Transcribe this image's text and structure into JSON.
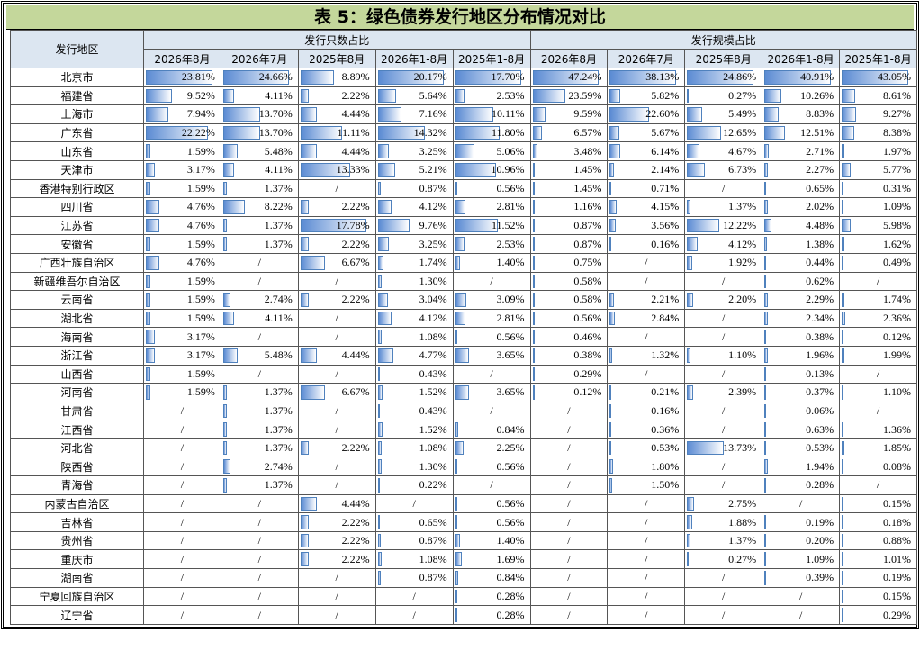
{
  "header": {
    "title": "表 5：绿色债券发行地区分布情况对比"
  },
  "table": {
    "region_header": "发行地区",
    "groups": [
      "发行只数占比",
      "发行规模占比"
    ],
    "columns": [
      "2026年8月",
      "2026年7月",
      "2025年8月",
      "2026年1-8月",
      "2025年1-8月",
      "2026年8月",
      "2026年7月",
      "2025年8月",
      "2026年1-8月",
      "2025年1-8月"
    ],
    "rows": [
      [
        "北京市",
        {
          "value": 23.81,
          "label": "23.81%"
        },
        {
          "value": 24.66,
          "label": "24.66%"
        },
        {
          "value": 8.89,
          "label": "8.89%"
        },
        {
          "value": 20.17,
          "label": "20.17%"
        },
        {
          "value": 17.7,
          "label": "17.70%"
        },
        {
          "value": 47.24,
          "label": "47.24%"
        },
        {
          "value": 38.13,
          "label": "38.13%"
        },
        {
          "value": 24.86,
          "label": "24.86%"
        },
        {
          "value": 40.91,
          "label": "40.91%"
        },
        {
          "value": 43.05,
          "label": "43.05%"
        }
      ],
      [
        "福建省",
        {
          "value": 9.52,
          "label": "9.52%"
        },
        {
          "value": 4.11,
          "label": "4.11%"
        },
        {
          "value": 2.22,
          "label": "2.22%"
        },
        {
          "value": 5.64,
          "label": "5.64%"
        },
        {
          "value": 2.53,
          "label": "2.53%"
        },
        {
          "value": 23.59,
          "label": "23.59%"
        },
        {
          "value": 5.82,
          "label": "5.82%"
        },
        {
          "value": 0.27,
          "label": "0.27%"
        },
        {
          "value": 10.26,
          "label": "10.26%"
        },
        {
          "value": 8.61,
          "label": "8.61%"
        }
      ],
      [
        "上海市",
        {
          "value": 7.94,
          "label": "7.94%"
        },
        {
          "value": 13.7,
          "label": "13.70%"
        },
        {
          "value": 4.44,
          "label": "4.44%"
        },
        {
          "value": 7.16,
          "label": "7.16%"
        },
        {
          "value": 10.11,
          "label": "10.11%"
        },
        {
          "value": 9.59,
          "label": "9.59%"
        },
        {
          "value": 22.6,
          "label": "22.60%"
        },
        {
          "value": 5.49,
          "label": "5.49%"
        },
        {
          "value": 8.83,
          "label": "8.83%"
        },
        {
          "value": 9.27,
          "label": "9.27%"
        }
      ],
      [
        "广东省",
        {
          "value": 22.22,
          "label": "22.22%"
        },
        {
          "value": 13.7,
          "label": "13.70%"
        },
        {
          "value": 11.11,
          "label": "11.11%"
        },
        {
          "value": 14.32,
          "label": "14.32%"
        },
        {
          "value": 11.8,
          "label": "11.80%"
        },
        {
          "value": 6.57,
          "label": "6.57%"
        },
        {
          "value": 5.67,
          "label": "5.67%"
        },
        {
          "value": 12.65,
          "label": "12.65%"
        },
        {
          "value": 12.51,
          "label": "12.51%"
        },
        {
          "value": 8.38,
          "label": "8.38%"
        }
      ],
      [
        "山东省",
        {
          "value": 1.59,
          "label": "1.59%"
        },
        {
          "value": 5.48,
          "label": "5.48%"
        },
        {
          "value": 4.44,
          "label": "4.44%"
        },
        {
          "value": 3.25,
          "label": "3.25%"
        },
        {
          "value": 5.06,
          "label": "5.06%"
        },
        {
          "value": 3.48,
          "label": "3.48%"
        },
        {
          "value": 6.14,
          "label": "6.14%"
        },
        {
          "value": 4.67,
          "label": "4.67%"
        },
        {
          "value": 2.71,
          "label": "2.71%"
        },
        {
          "value": 1.97,
          "label": "1.97%"
        }
      ],
      [
        "天津市",
        {
          "value": 3.17,
          "label": "3.17%"
        },
        {
          "value": 4.11,
          "label": "4.11%"
        },
        {
          "value": 13.33,
          "label": "13.33%"
        },
        {
          "value": 5.21,
          "label": "5.21%"
        },
        {
          "value": 10.96,
          "label": "10.96%"
        },
        {
          "value": 1.45,
          "label": "1.45%"
        },
        {
          "value": 2.14,
          "label": "2.14%"
        },
        {
          "value": 6.73,
          "label": "6.73%"
        },
        {
          "value": 2.27,
          "label": "2.27%"
        },
        {
          "value": 5.77,
          "label": "5.77%"
        }
      ],
      [
        "香港特别行政区",
        {
          "value": 1.59,
          "label": "1.59%"
        },
        {
          "value": 1.37,
          "label": "1.37%"
        },
        "/",
        {
          "value": 0.87,
          "label": "0.87%"
        },
        {
          "value": 0.56,
          "label": "0.56%"
        },
        {
          "value": 1.45,
          "label": "1.45%"
        },
        {
          "value": 0.71,
          "label": "0.71%"
        },
        "/",
        {
          "value": 0.65,
          "label": "0.65%"
        },
        {
          "value": 0.31,
          "label": "0.31%"
        }
      ],
      [
        "四川省",
        {
          "value": 4.76,
          "label": "4.76%"
        },
        {
          "value": 8.22,
          "label": "8.22%"
        },
        {
          "value": 2.22,
          "label": "2.22%"
        },
        {
          "value": 4.12,
          "label": "4.12%"
        },
        {
          "value": 2.81,
          "label": "2.81%"
        },
        {
          "value": 1.16,
          "label": "1.16%"
        },
        {
          "value": 4.15,
          "label": "4.15%"
        },
        {
          "value": 1.37,
          "label": "1.37%"
        },
        {
          "value": 2.02,
          "label": "2.02%"
        },
        {
          "value": 1.09,
          "label": "1.09%"
        }
      ],
      [
        "江苏省",
        {
          "value": 4.76,
          "label": "4.76%"
        },
        {
          "value": 1.37,
          "label": "1.37%"
        },
        {
          "value": 17.78,
          "label": "17.78%"
        },
        {
          "value": 9.76,
          "label": "9.76%"
        },
        {
          "value": 11.52,
          "label": "11.52%"
        },
        {
          "value": 0.87,
          "label": "0.87%"
        },
        {
          "value": 3.56,
          "label": "3.56%"
        },
        {
          "value": 12.22,
          "label": "12.22%"
        },
        {
          "value": 4.48,
          "label": "4.48%"
        },
        {
          "value": 5.98,
          "label": "5.98%"
        }
      ],
      [
        "安徽省",
        {
          "value": 1.59,
          "label": "1.59%"
        },
        {
          "value": 1.37,
          "label": "1.37%"
        },
        {
          "value": 2.22,
          "label": "2.22%"
        },
        {
          "value": 3.25,
          "label": "3.25%"
        },
        {
          "value": 2.53,
          "label": "2.53%"
        },
        {
          "value": 0.87,
          "label": "0.87%"
        },
        {
          "value": 0.16,
          "label": "0.16%"
        },
        {
          "value": 4.12,
          "label": "4.12%"
        },
        {
          "value": 1.38,
          "label": "1.38%"
        },
        {
          "value": 1.62,
          "label": "1.62%"
        }
      ],
      [
        "广西壮族自治区",
        {
          "value": 4.76,
          "label": "4.76%"
        },
        "/",
        {
          "value": 6.67,
          "label": "6.67%"
        },
        {
          "value": 1.74,
          "label": "1.74%"
        },
        {
          "value": 1.4,
          "label": "1.40%"
        },
        {
          "value": 0.75,
          "label": "0.75%"
        },
        "/",
        {
          "value": 1.92,
          "label": "1.92%"
        },
        {
          "value": 0.44,
          "label": "0.44%"
        },
        {
          "value": 0.49,
          "label": "0.49%"
        }
      ],
      [
        "新疆维吾尔自治区",
        {
          "value": 1.59,
          "label": "1.59%"
        },
        "/",
        "/",
        {
          "value": 1.3,
          "label": "1.30%"
        },
        "/",
        {
          "value": 0.58,
          "label": "0.58%"
        },
        "/",
        "/",
        {
          "value": 0.62,
          "label": "0.62%"
        },
        "/"
      ],
      [
        "云南省",
        {
          "value": 1.59,
          "label": "1.59%"
        },
        {
          "value": 2.74,
          "label": "2.74%"
        },
        {
          "value": 2.22,
          "label": "2.22%"
        },
        {
          "value": 3.04,
          "label": "3.04%"
        },
        {
          "value": 3.09,
          "label": "3.09%"
        },
        {
          "value": 0.58,
          "label": "0.58%"
        },
        {
          "value": 2.21,
          "label": "2.21%"
        },
        {
          "value": 2.2,
          "label": "2.20%"
        },
        {
          "value": 2.29,
          "label": "2.29%"
        },
        {
          "value": 1.74,
          "label": "1.74%"
        }
      ],
      [
        "湖北省",
        {
          "value": 1.59,
          "label": "1.59%"
        },
        {
          "value": 4.11,
          "label": "4.11%"
        },
        "/",
        {
          "value": 4.12,
          "label": "4.12%"
        },
        {
          "value": 2.81,
          "label": "2.81%"
        },
        {
          "value": 0.56,
          "label": "0.56%"
        },
        {
          "value": 2.84,
          "label": "2.84%"
        },
        "/",
        {
          "value": 2.34,
          "label": "2.34%"
        },
        {
          "value": 2.36,
          "label": "2.36%"
        }
      ],
      [
        "海南省",
        {
          "value": 3.17,
          "label": "3.17%"
        },
        "/",
        "/",
        {
          "value": 1.08,
          "label": "1.08%"
        },
        {
          "value": 0.56,
          "label": "0.56%"
        },
        {
          "value": 0.46,
          "label": "0.46%"
        },
        "/",
        "/",
        {
          "value": 0.38,
          "label": "0.38%"
        },
        {
          "value": 0.12,
          "label": "0.12%"
        }
      ],
      [
        "浙江省",
        {
          "value": 3.17,
          "label": "3.17%"
        },
        {
          "value": 5.48,
          "label": "5.48%"
        },
        {
          "value": 4.44,
          "label": "4.44%"
        },
        {
          "value": 4.77,
          "label": "4.77%"
        },
        {
          "value": 3.65,
          "label": "3.65%"
        },
        {
          "value": 0.38,
          "label": "0.38%"
        },
        {
          "value": 1.32,
          "label": "1.32%"
        },
        {
          "value": 1.1,
          "label": "1.10%"
        },
        {
          "value": 1.96,
          "label": "1.96%"
        },
        {
          "value": 1.99,
          "label": "1.99%"
        }
      ],
      [
        "山西省",
        {
          "value": 1.59,
          "label": "1.59%"
        },
        "/",
        "/",
        {
          "value": 0.43,
          "label": "0.43%"
        },
        "/",
        {
          "value": 0.29,
          "label": "0.29%"
        },
        "/",
        "/",
        {
          "value": 0.13,
          "label": "0.13%"
        },
        "/"
      ],
      [
        "河南省",
        {
          "value": 1.59,
          "label": "1.59%"
        },
        {
          "value": 1.37,
          "label": "1.37%"
        },
        {
          "value": 6.67,
          "label": "6.67%"
        },
        {
          "value": 1.52,
          "label": "1.52%"
        },
        {
          "value": 3.65,
          "label": "3.65%"
        },
        {
          "value": 0.12,
          "label": "0.12%"
        },
        {
          "value": 0.21,
          "label": "0.21%"
        },
        {
          "value": 2.39,
          "label": "2.39%"
        },
        {
          "value": 0.37,
          "label": "0.37%"
        },
        {
          "value": 1.1,
          "label": "1.10%"
        }
      ],
      [
        "甘肃省",
        "/",
        {
          "value": 1.37,
          "label": "1.37%"
        },
        "/",
        {
          "value": 0.43,
          "label": "0.43%"
        },
        "/",
        "/",
        {
          "value": 0.16,
          "label": "0.16%"
        },
        "/",
        {
          "value": 0.06,
          "label": "0.06%"
        },
        "/"
      ],
      [
        "江西省",
        "/",
        {
          "value": 1.37,
          "label": "1.37%"
        },
        "/",
        {
          "value": 1.52,
          "label": "1.52%"
        },
        {
          "value": 0.84,
          "label": "0.84%"
        },
        "/",
        {
          "value": 0.36,
          "label": "0.36%"
        },
        "/",
        {
          "value": 0.63,
          "label": "0.63%"
        },
        {
          "value": 1.36,
          "label": "1.36%"
        }
      ],
      [
        "河北省",
        "/",
        {
          "value": 1.37,
          "label": "1.37%"
        },
        {
          "value": 2.22,
          "label": "2.22%"
        },
        {
          "value": 1.08,
          "label": "1.08%"
        },
        {
          "value": 2.25,
          "label": "2.25%"
        },
        "/",
        {
          "value": 0.53,
          "label": "0.53%"
        },
        {
          "value": 13.73,
          "label": "13.73%"
        },
        {
          "value": 0.53,
          "label": "0.53%"
        },
        {
          "value": 1.85,
          "label": "1.85%"
        }
      ],
      [
        "陕西省",
        "/",
        {
          "value": 2.74,
          "label": "2.74%"
        },
        "/",
        {
          "value": 1.3,
          "label": "1.30%"
        },
        {
          "value": 0.56,
          "label": "0.56%"
        },
        "/",
        {
          "value": 1.8,
          "label": "1.80%"
        },
        "/",
        {
          "value": 1.94,
          "label": "1.94%"
        },
        {
          "value": 0.08,
          "label": "0.08%"
        }
      ],
      [
        "青海省",
        "/",
        {
          "value": 1.37,
          "label": "1.37%"
        },
        "/",
        {
          "value": 0.22,
          "label": "0.22%"
        },
        "/",
        "/",
        {
          "value": 1.5,
          "label": "1.50%"
        },
        "/",
        {
          "value": 0.28,
          "label": "0.28%"
        },
        "/"
      ],
      [
        "内蒙古自治区",
        "/",
        "/",
        {
          "value": 4.44,
          "label": "4.44%"
        },
        "/",
        {
          "value": 0.56,
          "label": "0.56%"
        },
        "/",
        "/",
        {
          "value": 2.75,
          "label": "2.75%"
        },
        "/",
        {
          "value": 0.15,
          "label": "0.15%"
        }
      ],
      [
        "吉林省",
        "/",
        "/",
        {
          "value": 2.22,
          "label": "2.22%"
        },
        {
          "value": 0.65,
          "label": "0.65%"
        },
        {
          "value": 0.56,
          "label": "0.56%"
        },
        "/",
        "/",
        {
          "value": 1.88,
          "label": "1.88%"
        },
        {
          "value": 0.19,
          "label": "0.19%"
        },
        {
          "value": 0.18,
          "label": "0.18%"
        }
      ],
      [
        "贵州省",
        "/",
        "/",
        {
          "value": 2.22,
          "label": "2.22%"
        },
        {
          "value": 0.87,
          "label": "0.87%"
        },
        {
          "value": 1.4,
          "label": "1.40%"
        },
        "/",
        "/",
        {
          "value": 1.37,
          "label": "1.37%"
        },
        {
          "value": 0.2,
          "label": "0.20%"
        },
        {
          "value": 0.88,
          "label": "0.88%"
        }
      ],
      [
        "重庆市",
        "/",
        "/",
        {
          "value": 2.22,
          "label": "2.22%"
        },
        {
          "value": 1.08,
          "label": "1.08%"
        },
        {
          "value": 1.69,
          "label": "1.69%"
        },
        "/",
        "/",
        {
          "value": 0.27,
          "label": "0.27%"
        },
        {
          "value": 1.09,
          "label": "1.09%"
        },
        {
          "value": 1.01,
          "label": "1.01%"
        }
      ],
      [
        "湖南省",
        "/",
        "/",
        "/",
        {
          "value": 0.87,
          "label": "0.87%"
        },
        {
          "value": 0.84,
          "label": "0.84%"
        },
        "/",
        "/",
        "/",
        {
          "value": 0.39,
          "label": "0.39%"
        },
        {
          "value": 0.19,
          "label": "0.19%"
        }
      ],
      [
        "宁夏回族自治区",
        "/",
        "/",
        "/",
        "/",
        {
          "value": 0.28,
          "label": "0.28%"
        },
        "/",
        "/",
        "/",
        "/",
        {
          "value": 0.15,
          "label": "0.15%"
        }
      ],
      [
        "辽宁省",
        "/",
        "/",
        "/",
        "/",
        {
          "value": 0.28,
          "label": "0.28%"
        },
        "/",
        "/",
        "/",
        "/",
        {
          "value": 0.29,
          "label": "0.29%"
        }
      ]
    ]
  }
}
